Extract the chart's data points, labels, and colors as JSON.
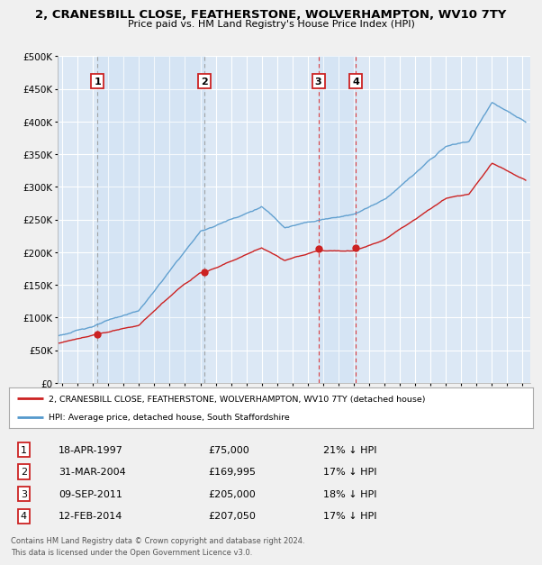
{
  "title": "2, CRANESBILL CLOSE, FEATHERSTONE, WOLVERHAMPTON, WV10 7TY",
  "subtitle": "Price paid vs. HM Land Registry's House Price Index (HPI)",
  "bg_color": "#f0f0f0",
  "plot_bg_color": "#dce8f5",
  "grid_color": "#ffffff",
  "sale_years": [
    1997.3,
    2004.25,
    2011.69,
    2014.12
  ],
  "sale_prices": [
    75000,
    169995,
    205000,
    207050
  ],
  "sale_labels": [
    "1",
    "2",
    "3",
    "4"
  ],
  "legend_line1": "2, CRANESBILL CLOSE, FEATHERSTONE, WOLVERHAMPTON, WV10 7TY (detached house)",
  "legend_line2": "HPI: Average price, detached house, South Staffordshire",
  "table_rows": [
    [
      "1",
      "18-APR-1997",
      "£75,000",
      "21% ↓ HPI"
    ],
    [
      "2",
      "31-MAR-2004",
      "£169,995",
      "17% ↓ HPI"
    ],
    [
      "3",
      "09-SEP-2011",
      "£205,000",
      "18% ↓ HPI"
    ],
    [
      "4",
      "12-FEB-2014",
      "£207,050",
      "17% ↓ HPI"
    ]
  ],
  "footer": "Contains HM Land Registry data © Crown copyright and database right 2024.\nThis data is licensed under the Open Government Licence v3.0.",
  "red_line_color": "#cc2222",
  "blue_line_color": "#5599cc",
  "dot_color": "#cc2222",
  "ylim": [
    0,
    500000
  ],
  "yticks": [
    0,
    50000,
    100000,
    150000,
    200000,
    250000,
    300000,
    350000,
    400000,
    450000,
    500000
  ],
  "xlim_start": 1994.7,
  "xlim_end": 2025.5
}
